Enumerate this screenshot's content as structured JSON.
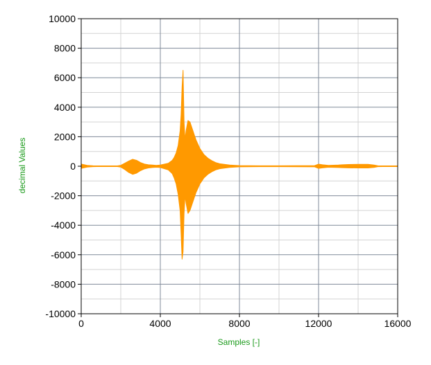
{
  "chart_data": {
    "type": "line",
    "title": "",
    "xlabel": "Samples [-]",
    "ylabel": "decimal Values",
    "xlim": [
      0,
      16000
    ],
    "ylim": [
      -10000,
      10000
    ],
    "x_ticks": [
      "0",
      "4000",
      "8000",
      "12000",
      "16000"
    ],
    "x_tick_values": [
      0,
      4000,
      8000,
      12000,
      16000
    ],
    "y_ticks": [
      "10000",
      "8000",
      "6000",
      "4000",
      "2000",
      "0",
      "-2000",
      "-4000",
      "-6000",
      "-8000",
      "-10000"
    ],
    "y_tick_values": [
      10000,
      8000,
      6000,
      4000,
      2000,
      0,
      -2000,
      -4000,
      -6000,
      -8000,
      -10000
    ],
    "grid": {
      "major_x": true,
      "minor_x": true,
      "major_y": true,
      "minor_y": true
    },
    "legend": "none",
    "series": [
      {
        "color": "#ff9900",
        "envelope": {
          "x": [
            0,
            100,
            300,
            600,
            1000,
            1800,
            2000,
            2200,
            2400,
            2600,
            2800,
            3000,
            3200,
            3400,
            3600,
            3800,
            4000,
            4400,
            4600,
            4700,
            4800,
            4900,
            5000,
            5050,
            5100,
            5150,
            5200,
            5250,
            5300,
            5400,
            5500,
            5600,
            5800,
            6000,
            6200,
            6400,
            6600,
            6800,
            7000,
            7500,
            8000,
            9000,
            10000,
            11800,
            12000,
            12200,
            12500,
            13000,
            13200,
            13500,
            14000,
            14500,
            14800,
            15000,
            15500,
            16000
          ],
          "upper": [
            150,
            120,
            60,
            30,
            20,
            20,
            60,
            200,
            350,
            470,
            400,
            250,
            150,
            100,
            80,
            60,
            80,
            200,
            400,
            600,
            900,
            1400,
            2400,
            3500,
            5400,
            6500,
            3000,
            1800,
            2400,
            3100,
            3000,
            2600,
            1800,
            1200,
            800,
            550,
            380,
            250,
            170,
            80,
            40,
            30,
            30,
            40,
            140,
            100,
            60,
            80,
            100,
            120,
            130,
            130,
            80,
            30,
            20,
            20
          ],
          "lower": [
            -150,
            -120,
            -60,
            -30,
            -20,
            -20,
            -60,
            -220,
            -420,
            -550,
            -470,
            -300,
            -180,
            -120,
            -90,
            -70,
            -90,
            -250,
            -500,
            -800,
            -1200,
            -1900,
            -3000,
            -4600,
            -6300,
            -5800,
            -3200,
            -2000,
            -2500,
            -3200,
            -3000,
            -2600,
            -1800,
            -1200,
            -800,
            -550,
            -380,
            -250,
            -170,
            -80,
            -40,
            -30,
            -30,
            -40,
            -150,
            -110,
            -70,
            -90,
            -100,
            -110,
            -120,
            -120,
            -80,
            -30,
            -20,
            -20
          ]
        }
      }
    ]
  }
}
